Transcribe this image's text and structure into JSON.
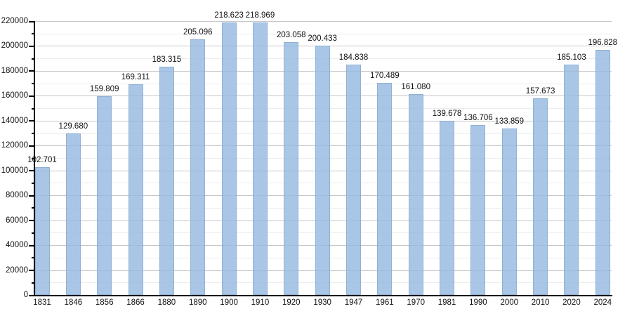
{
  "chart_data": {
    "type": "bar",
    "title": "",
    "xlabel": "",
    "ylabel": "",
    "categories": [
      "1831",
      "1846",
      "1856",
      "1866",
      "1880",
      "1890",
      "1900",
      "1910",
      "1920",
      "1930",
      "1947",
      "1961",
      "1970",
      "1981",
      "1990",
      "2000",
      "2010",
      "2020",
      "2024"
    ],
    "values": [
      102701,
      129680,
      159809,
      169311,
      183315,
      205096,
      218623,
      218969,
      203058,
      200433,
      184838,
      170489,
      161080,
      139678,
      136706,
      133859,
      157673,
      185103,
      196828
    ],
    "value_labels": [
      "102.701",
      "129.680",
      "159.809",
      "169.311",
      "183.315",
      "205.096",
      "218.623",
      "218.969",
      "203.058",
      "200.433",
      "184.838",
      "170.489",
      "161.080",
      "139.678",
      "136.706",
      "133.859",
      "157.673",
      "185.103",
      "196.828"
    ],
    "ylim": [
      0,
      220000
    ],
    "y_major_step": 20000,
    "y_minor_step": 10000,
    "y_tick_labels": [
      "0",
      "20000",
      "40000",
      "60000",
      "80000",
      "100000",
      "120000",
      "140000",
      "160000",
      "180000",
      "200000",
      "220000"
    ],
    "grid": "on",
    "legend": "none",
    "colors": {
      "bar_fill": "#aec8e8",
      "bar_edge": "#9db9da",
      "major_grid": "#c6c6c6",
      "minor_grid": "#ececec",
      "axis": "#000000",
      "text": "#111111",
      "background": "#ffffff"
    }
  }
}
